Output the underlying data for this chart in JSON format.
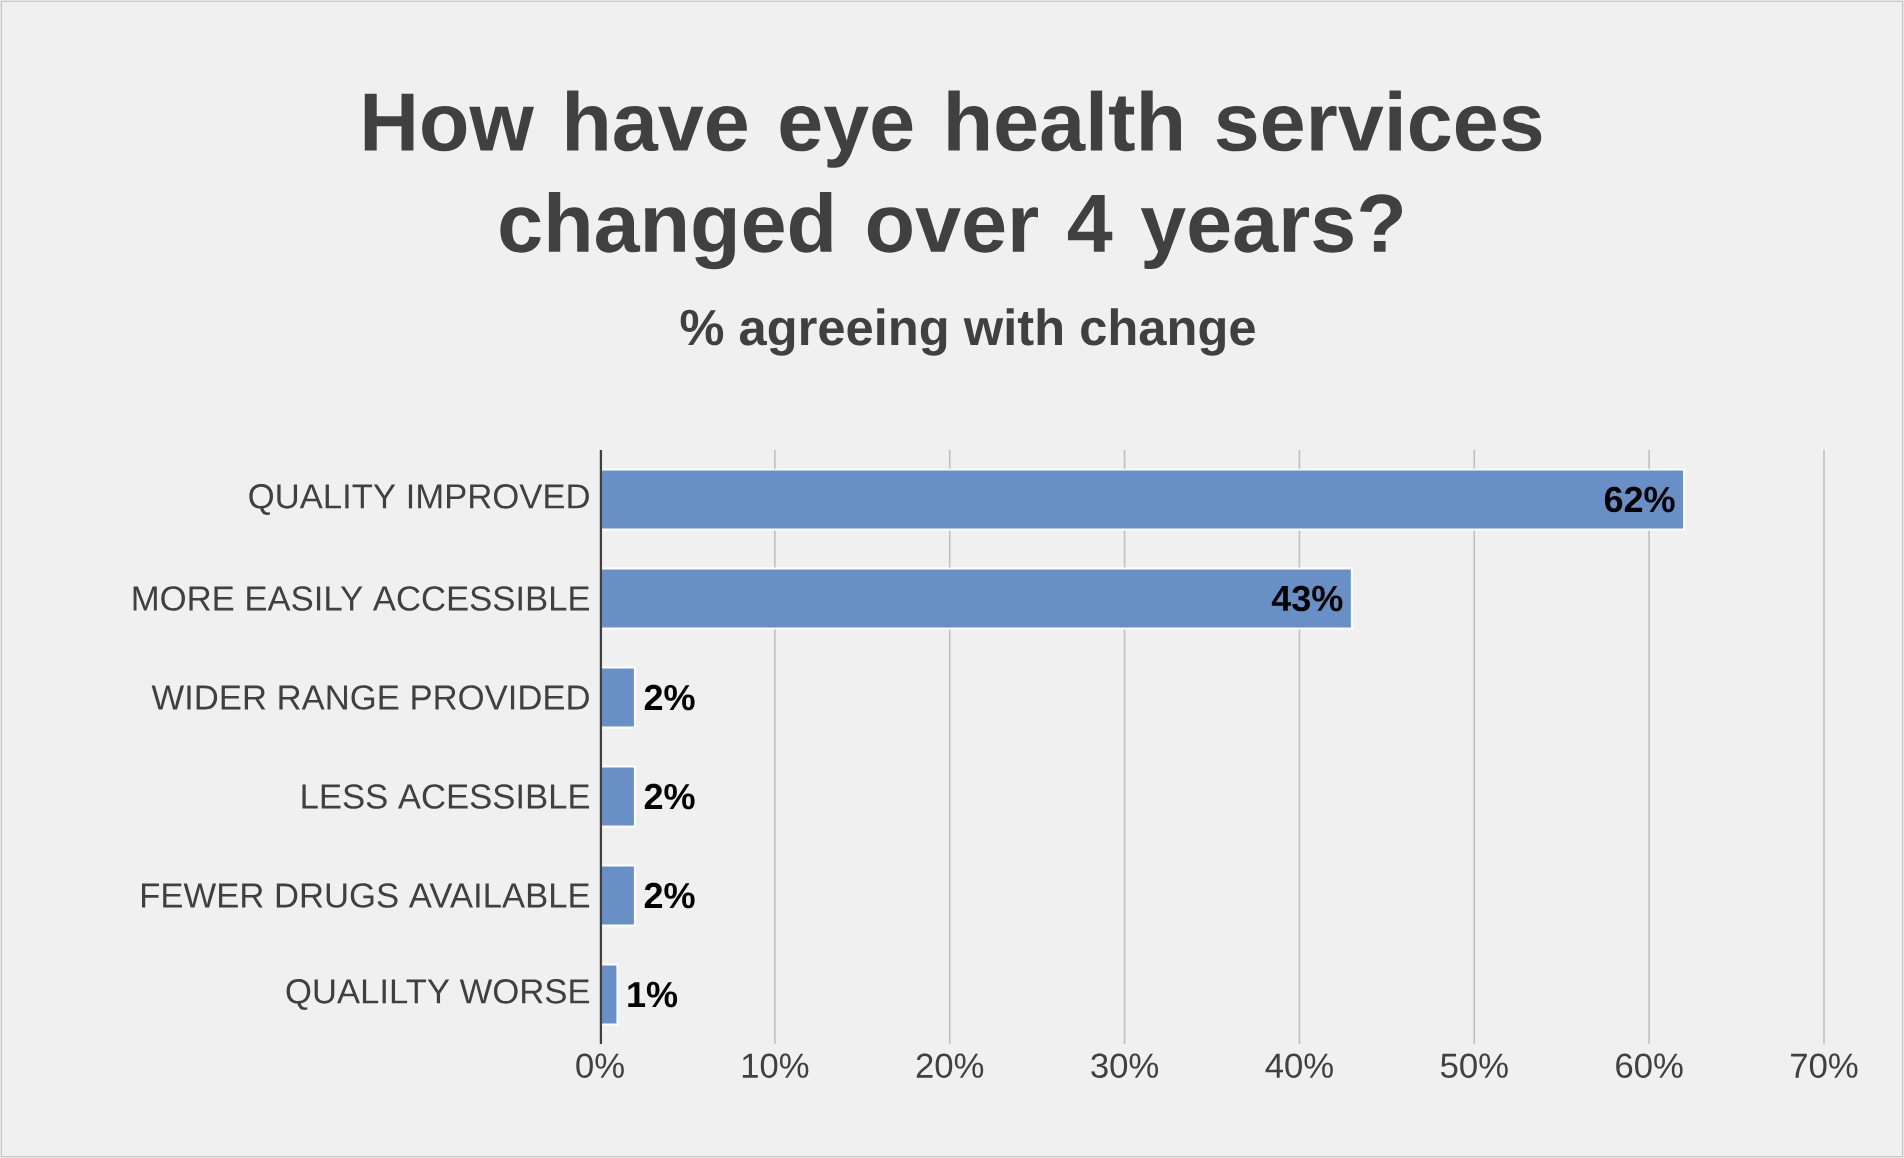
{
  "chart_data": {
    "type": "bar",
    "orientation": "horizontal",
    "title": "How have eye health services changed over 4 years?",
    "subtitle": "% agreeing with change",
    "categories": [
      "QUALITY IMPROVED",
      "MORE EASILY ACCESSIBLE",
      "WIDER RANGE PROVIDED",
      "LESS ACESSIBLE",
      "FEWER DRUGS AVAILABLE",
      "QUALILTY WORSE"
    ],
    "values": [
      62,
      43,
      2,
      2,
      2,
      1
    ],
    "value_labels": [
      "62%",
      "43%",
      "2%",
      "2%",
      "2%",
      "1%"
    ],
    "color": "#6890c6",
    "xlim": [
      0,
      70
    ],
    "xticks": [
      {
        "value": 0,
        "label": "0%"
      },
      {
        "value": 10,
        "label": "10%"
      },
      {
        "value": 20,
        "label": "20%"
      },
      {
        "value": 30,
        "label": "30%"
      },
      {
        "value": 40,
        "label": "40%"
      },
      {
        "value": 50,
        "label": "50%"
      },
      {
        "value": 60,
        "label": "60%"
      },
      {
        "value": 70,
        "label": "70%"
      }
    ],
    "grid": "x"
  }
}
